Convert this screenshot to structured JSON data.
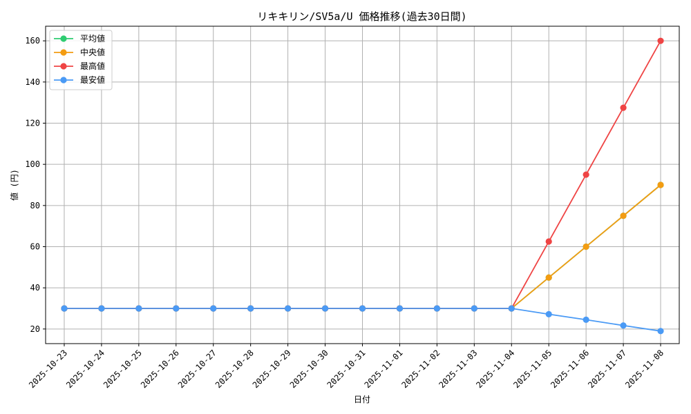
{
  "chart_data": {
    "type": "line",
    "title": "リキキリン/SV5a/U 価格推移(過去30日間)",
    "xlabel": "日付",
    "ylabel": "値 (円)",
    "x": [
      "2025-10-23",
      "2025-10-24",
      "2025-10-25",
      "2025-10-26",
      "2025-10-27",
      "2025-10-28",
      "2025-10-29",
      "2025-10-30",
      "2025-10-31",
      "2025-11-01",
      "2025-11-02",
      "2025-11-03",
      "2025-11-04",
      "2025-11-05",
      "2025-11-06",
      "2025-11-07",
      "2025-11-08"
    ],
    "ylim": [
      12.9,
      167.1
    ],
    "yticks": [
      20,
      40,
      60,
      80,
      100,
      120,
      140,
      160
    ],
    "grid": true,
    "legend_position": "top-left",
    "series": [
      {
        "name": "平均値",
        "color": "#2ecc71",
        "values": [
          30,
          30,
          30,
          30,
          30,
          30,
          30,
          30,
          30,
          30,
          30,
          30,
          30,
          45,
          60,
          75,
          90
        ]
      },
      {
        "name": "中央値",
        "color": "#f39c12",
        "values": [
          30,
          30,
          30,
          30,
          30,
          30,
          30,
          30,
          30,
          30,
          30,
          30,
          30,
          45,
          60,
          75,
          90
        ]
      },
      {
        "name": "最高値",
        "color": "#ef4444",
        "values": [
          30,
          30,
          30,
          30,
          30,
          30,
          30,
          30,
          30,
          30,
          30,
          30,
          30,
          62.5,
          95,
          127.5,
          160
        ]
      },
      {
        "name": "最安値",
        "color": "#4a9af5",
        "values": [
          30,
          30,
          30,
          30,
          30,
          30,
          30,
          30,
          30,
          30,
          30,
          30,
          30,
          27.2,
          24.5,
          21.7,
          19
        ]
      }
    ]
  }
}
